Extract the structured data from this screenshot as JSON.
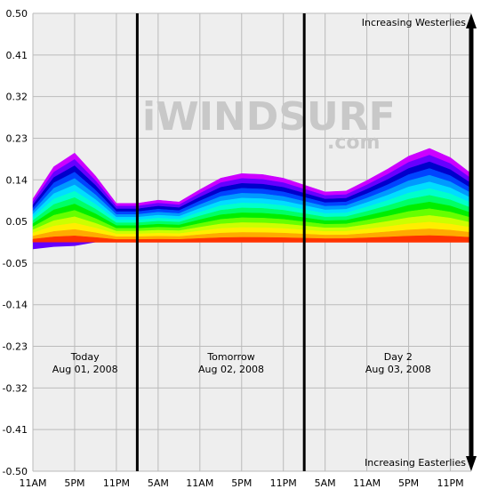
{
  "watermark": {
    "main": "iWINDSURF",
    "sub": ".com"
  },
  "chart_data": {
    "type": "area",
    "ylim": [
      -0.5,
      0.5
    ],
    "yticks": [
      "0.50",
      "0.41",
      "0.32",
      "0.23",
      "0.14",
      "0.05",
      "-0.05",
      "-0.14",
      "-0.23",
      "-0.32",
      "-0.41",
      "-0.50"
    ],
    "xlim": [
      0,
      21
    ],
    "xticks": [
      {
        "x": 0,
        "label": "11AM"
      },
      {
        "x": 2,
        "label": "5PM"
      },
      {
        "x": 4,
        "label": "11PM"
      },
      {
        "x": 6,
        "label": "5AM"
      },
      {
        "x": 8,
        "label": "11AM"
      },
      {
        "x": 10,
        "label": "5PM"
      },
      {
        "x": 12,
        "label": "11PM"
      },
      {
        "x": 14,
        "label": "5AM"
      },
      {
        "x": 16,
        "label": "11AM"
      },
      {
        "x": 18,
        "label": "5PM"
      },
      {
        "x": 20,
        "label": "11PM"
      }
    ],
    "day_dividers": [
      5,
      13
    ],
    "days": [
      {
        "name": "Today",
        "date": "Aug 01, 2008",
        "x": 2.5
      },
      {
        "name": "Tomorrow",
        "date": "Aug 02, 2008",
        "x": 9.5
      },
      {
        "name": "Day 2",
        "date": "Aug 03, 2008",
        "x": 17.5
      }
    ],
    "annotations": {
      "top": "Increasing Westerlies",
      "bottom": "Increasing Easterlies"
    },
    "x": [
      0,
      1,
      2,
      3,
      4,
      5,
      6,
      7,
      8,
      9,
      10,
      11,
      12,
      13,
      14,
      15,
      16,
      17,
      18,
      19,
      20,
      21
    ],
    "envelope": [
      0.095,
      0.165,
      0.195,
      0.145,
      0.085,
      0.085,
      0.092,
      0.088,
      0.115,
      0.14,
      0.15,
      0.148,
      0.14,
      0.125,
      0.11,
      0.112,
      0.135,
      0.16,
      0.188,
      0.205,
      0.185,
      0.15
    ],
    "negative_envelope": [
      -0.015,
      -0.01,
      -0.008,
      0,
      0,
      0,
      0,
      0,
      0,
      0,
      0,
      0,
      0,
      0,
      0,
      0,
      0,
      0,
      0,
      0,
      0,
      0
    ],
    "band_colors": [
      "#cc00ff",
      "#6600ff",
      "#0000cc",
      "#0044ff",
      "#0099ff",
      "#00ddff",
      "#00ffcc",
      "#00ff66",
      "#00ee00",
      "#66ff00",
      "#ccff00",
      "#ffee00",
      "#ffaa00",
      "#ff3300"
    ],
    "grid": true
  }
}
